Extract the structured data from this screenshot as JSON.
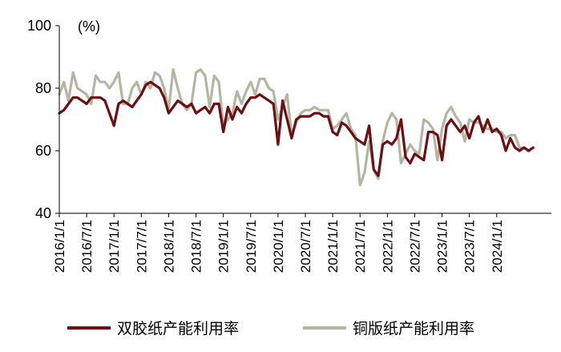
{
  "chart_data": {
    "type": "line",
    "unit_label": "(%)",
    "ylim": [
      40,
      100
    ],
    "yticks": [
      40,
      60,
      80,
      100
    ],
    "xlim": [
      "2016/1/1",
      "2024/12/1"
    ],
    "xticks": [
      "2016/1/1",
      "2016/7/1",
      "2017/1/1",
      "2017/7/1",
      "2018/1/1",
      "2018/7/1",
      "2019/1/1",
      "2019/7/1",
      "2020/1/1",
      "2020/7/1",
      "2021/1/1",
      "2021/7/1",
      "2022/1/1",
      "2022/7/1",
      "2023/1/1",
      "2023/7/1",
      "2024/1/1"
    ],
    "grid": false,
    "legend_position": "bottom",
    "series": [
      {
        "name": "双胶纸产能利用率",
        "color": "#6B0F12",
        "x": [
          "2016/1/1",
          "2016/2/1",
          "2016/3/1",
          "2016/4/1",
          "2016/5/1",
          "2016/6/1",
          "2016/7/1",
          "2016/8/1",
          "2016/9/1",
          "2016/10/1",
          "2016/11/1",
          "2016/12/1",
          "2017/1/1",
          "2017/2/1",
          "2017/3/1",
          "2017/4/1",
          "2017/5/1",
          "2017/6/1",
          "2017/7/1",
          "2017/8/1",
          "2017/9/1",
          "2017/10/1",
          "2017/11/1",
          "2017/12/1",
          "2018/1/1",
          "2018/2/1",
          "2018/3/1",
          "2018/4/1",
          "2018/5/1",
          "2018/6/1",
          "2018/7/1",
          "2018/8/1",
          "2018/9/1",
          "2018/10/1",
          "2018/11/1",
          "2018/12/1",
          "2019/1/1",
          "2019/2/1",
          "2019/3/1",
          "2019/4/1",
          "2019/5/1",
          "2019/6/1",
          "2019/7/1",
          "2019/8/1",
          "2019/9/1",
          "2019/10/1",
          "2019/11/1",
          "2019/12/1",
          "2020/1/1",
          "2020/2/1",
          "2020/3/1",
          "2020/4/1",
          "2020/5/1",
          "2020/6/1",
          "2020/7/1",
          "2020/8/1",
          "2020/9/1",
          "2020/10/1",
          "2020/11/1",
          "2020/12/1",
          "2021/1/1",
          "2021/2/1",
          "2021/3/1",
          "2021/4/1",
          "2021/5/1",
          "2021/6/1",
          "2021/7/1",
          "2021/8/1",
          "2021/9/1",
          "2021/10/1",
          "2021/11/1",
          "2021/12/1",
          "2022/1/1",
          "2022/2/1",
          "2022/3/1",
          "2022/4/1",
          "2022/5/1",
          "2022/6/1",
          "2022/7/1",
          "2022/8/1",
          "2022/9/1",
          "2022/10/1",
          "2022/11/1",
          "2022/12/1",
          "2023/1/1",
          "2023/2/1",
          "2023/3/1",
          "2023/4/1",
          "2023/5/1",
          "2023/6/1",
          "2023/7/1",
          "2023/8/1",
          "2023/9/1",
          "2023/10/1",
          "2023/11/1",
          "2023/12/1",
          "2024/1/1",
          "2024/2/1",
          "2024/3/1",
          "2024/4/1",
          "2024/5/1",
          "2024/6/1",
          "2024/7/1",
          "2024/8/1",
          "2024/9/1"
        ],
        "values": [
          72,
          73,
          75,
          77,
          77,
          76,
          75,
          77,
          77,
          77,
          76,
          72,
          68,
          75,
          76,
          75,
          74,
          76,
          78,
          81,
          82,
          81,
          80,
          77,
          72,
          74,
          76,
          75,
          74,
          75,
          72,
          73,
          74,
          72,
          75,
          75,
          66,
          74,
          70,
          74,
          72,
          75,
          77,
          77,
          78,
          77,
          76,
          75,
          62,
          76,
          70,
          64,
          70,
          71,
          71,
          71,
          72,
          72,
          71,
          71,
          66,
          65,
          69,
          68,
          66,
          64,
          63,
          62,
          68,
          54,
          52,
          62,
          63,
          62,
          64,
          70,
          58,
          56,
          59,
          58,
          57,
          66,
          66,
          65,
          57,
          68,
          70,
          68,
          66,
          68,
          64,
          69,
          71,
          66,
          70,
          66,
          67,
          65,
          60,
          64,
          61,
          60,
          61,
          60,
          61
        ]
      },
      {
        "name": "铜版纸产能利用率",
        "color": "#B5B5A2",
        "x": [
          "2016/1/1",
          "2016/2/1",
          "2016/3/1",
          "2016/4/1",
          "2016/5/1",
          "2016/6/1",
          "2016/7/1",
          "2016/8/1",
          "2016/9/1",
          "2016/10/1",
          "2016/11/1",
          "2016/12/1",
          "2017/1/1",
          "2017/2/1",
          "2017/3/1",
          "2017/4/1",
          "2017/5/1",
          "2017/6/1",
          "2017/7/1",
          "2017/8/1",
          "2017/9/1",
          "2017/10/1",
          "2017/11/1",
          "2017/12/1",
          "2018/1/1",
          "2018/2/1",
          "2018/3/1",
          "2018/4/1",
          "2018/5/1",
          "2018/6/1",
          "2018/7/1",
          "2018/8/1",
          "2018/9/1",
          "2018/10/1",
          "2018/11/1",
          "2018/12/1",
          "2019/1/1",
          "2019/2/1",
          "2019/3/1",
          "2019/4/1",
          "2019/5/1",
          "2019/6/1",
          "2019/7/1",
          "2019/8/1",
          "2019/9/1",
          "2019/10/1",
          "2019/11/1",
          "2019/12/1",
          "2020/1/1",
          "2020/2/1",
          "2020/3/1",
          "2020/4/1",
          "2020/5/1",
          "2020/6/1",
          "2020/7/1",
          "2020/8/1",
          "2020/9/1",
          "2020/10/1",
          "2020/11/1",
          "2020/12/1",
          "2021/1/1",
          "2021/2/1",
          "2021/3/1",
          "2021/4/1",
          "2021/5/1",
          "2021/6/1",
          "2021/7/1",
          "2021/8/1",
          "2021/9/1",
          "2021/10/1",
          "2021/11/1",
          "2021/12/1",
          "2022/1/1",
          "2022/2/1",
          "2022/3/1",
          "2022/4/1",
          "2022/5/1",
          "2022/6/1",
          "2022/7/1",
          "2022/8/1",
          "2022/9/1",
          "2022/10/1",
          "2022/11/1",
          "2022/12/1",
          "2023/1/1",
          "2023/2/1",
          "2023/3/1",
          "2023/4/1",
          "2023/5/1",
          "2023/6/1",
          "2023/7/1",
          "2023/8/1",
          "2023/9/1",
          "2023/10/1",
          "2023/11/1",
          "2023/12/1",
          "2024/1/1",
          "2024/2/1",
          "2024/3/1",
          "2024/4/1",
          "2024/5/1",
          "2024/6/1",
          "2024/7/1",
          "2024/8/1",
          "2024/9/1"
        ],
        "values": [
          78,
          82,
          76,
          85,
          80,
          79,
          78,
          75,
          84,
          82,
          82,
          80,
          82,
          85,
          75,
          75,
          80,
          82,
          78,
          82,
          80,
          85,
          84,
          80,
          73,
          86,
          80,
          75,
          73,
          75,
          85,
          86,
          84,
          74,
          84,
          82,
          68,
          70,
          72,
          79,
          75,
          79,
          82,
          78,
          83,
          83,
          80,
          79,
          70,
          74,
          78,
          65,
          69,
          72,
          73,
          73,
          74,
          73,
          73,
          73,
          67,
          68,
          70,
          72,
          67,
          65,
          49,
          53,
          63,
          54,
          51,
          63,
          69,
          72,
          70,
          56,
          59,
          62,
          60,
          59,
          70,
          69,
          67,
          57,
          67,
          72,
          74,
          71,
          69,
          63,
          70,
          69,
          69,
          68,
          67,
          67,
          66,
          66,
          64,
          65,
          65,
          61,
          61,
          60,
          61
        ]
      }
    ]
  }
}
